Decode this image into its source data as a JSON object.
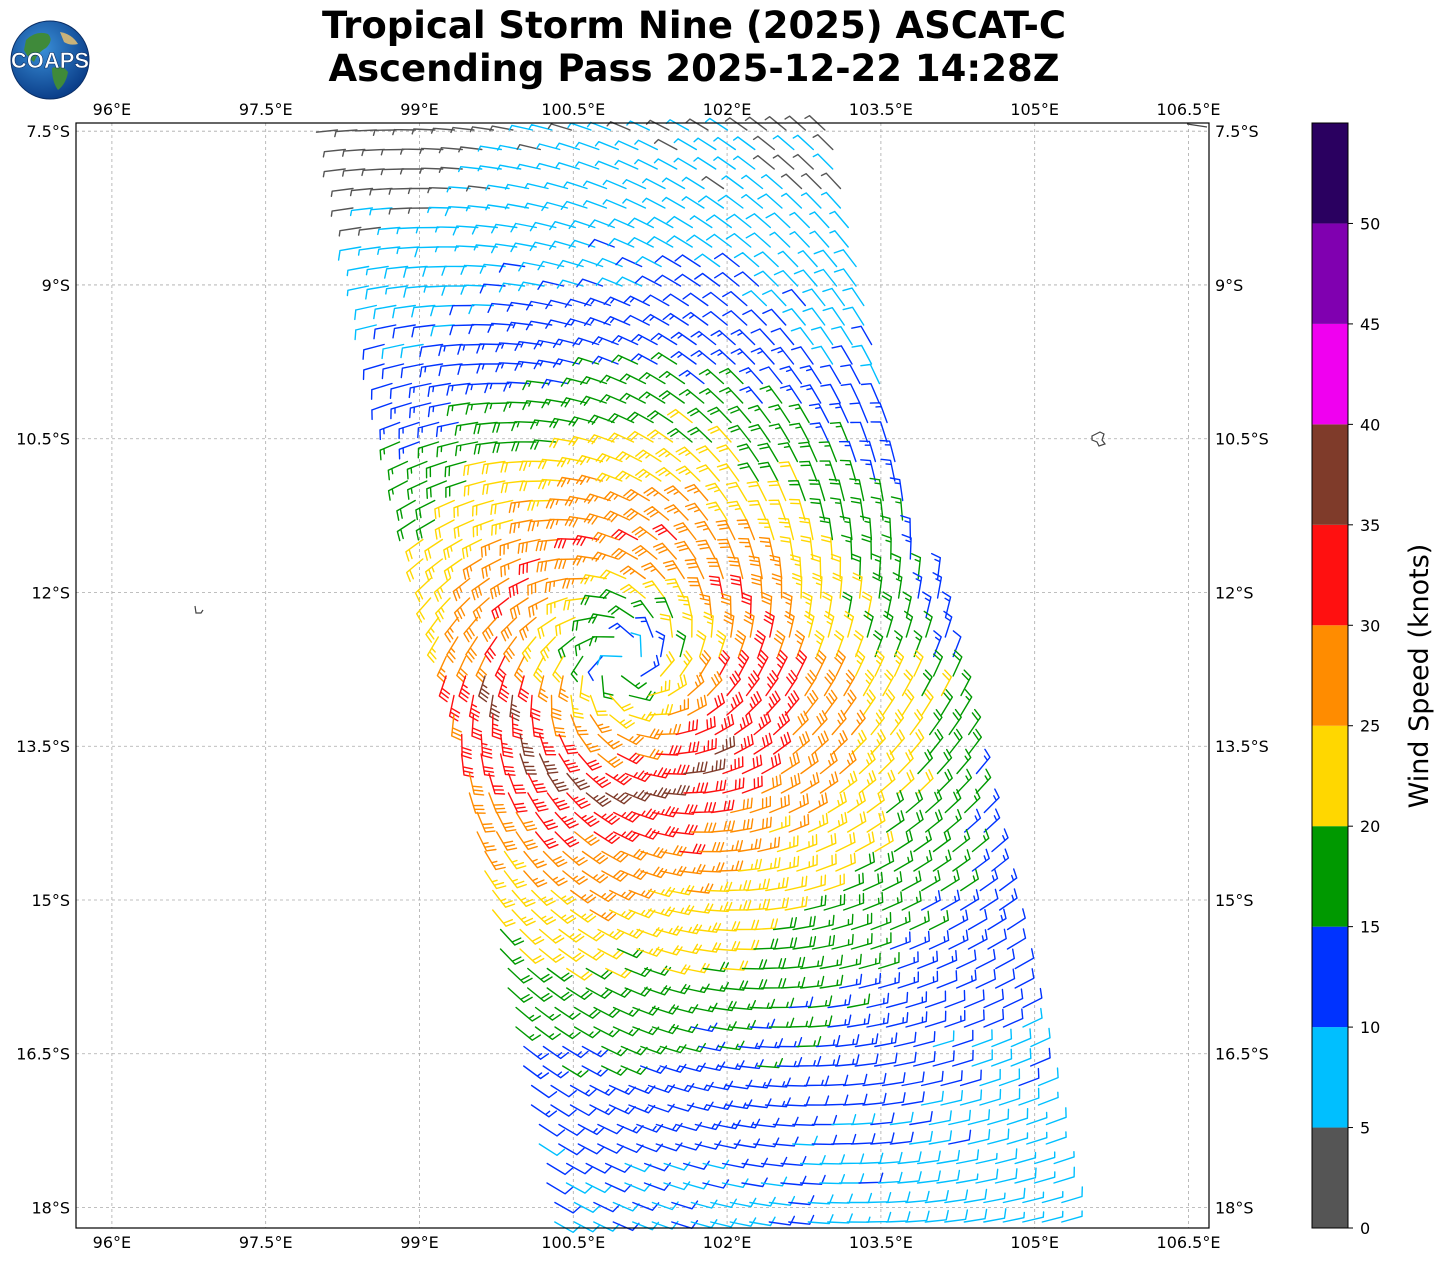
{
  "title": {
    "line1": "Tropical Storm Nine (2025) ASCAT-C",
    "line2": "Ascending Pass 2025-12-22 14:28Z"
  },
  "logo": {
    "text": "COAPS"
  },
  "map": {
    "lon_range": [
      95.65,
      106.7
    ],
    "lat_range": [
      -18.2,
      -7.42
    ],
    "lon_ticks": [
      {
        "value": 96,
        "label": "96°E"
      },
      {
        "value": 97.5,
        "label": "97.5°E"
      },
      {
        "value": 99,
        "label": "99°E"
      },
      {
        "value": 100.5,
        "label": "100.5°E"
      },
      {
        "value": 102,
        "label": "102°E"
      },
      {
        "value": 103.5,
        "label": "103.5°E"
      },
      {
        "value": 105,
        "label": "105°E"
      },
      {
        "value": 106.5,
        "label": "106.5°E"
      }
    ],
    "lat_ticks": [
      {
        "value": -7.5,
        "label": "7.5°S"
      },
      {
        "value": -9,
        "label": "9°S"
      },
      {
        "value": -10.5,
        "label": "10.5°S"
      },
      {
        "value": -12,
        "label": "12°S"
      },
      {
        "value": -13.5,
        "label": "13.5°S"
      },
      {
        "value": -15,
        "label": "15°S"
      },
      {
        "value": -16.5,
        "label": "16.5°S"
      },
      {
        "value": -18,
        "label": "18°S"
      }
    ],
    "storm_center": {
      "lon": 101.0,
      "lat": -12.7
    }
  },
  "colorbar": {
    "label": "Wind Speed (knots)",
    "levels": [
      {
        "from": 0,
        "to": 5,
        "color": "#555555"
      },
      {
        "from": 5,
        "to": 10,
        "color": "#00bfff"
      },
      {
        "from": 10,
        "to": 15,
        "color": "#0033ff"
      },
      {
        "from": 15,
        "to": 20,
        "color": "#009900"
      },
      {
        "from": 20,
        "to": 25,
        "color": "#ffd700"
      },
      {
        "from": 25,
        "to": 30,
        "color": "#ff8c00"
      },
      {
        "from": 30,
        "to": 35,
        "color": "#ff1010"
      },
      {
        "from": 35,
        "to": 40,
        "color": "#7f3b2a"
      },
      {
        "from": 40,
        "to": 45,
        "color": "#f000f0"
      },
      {
        "from": 45,
        "to": 50,
        "color": "#8000b0"
      },
      {
        "from": 50,
        "to": 55,
        "color": "#2a0060"
      }
    ],
    "tick_values": [
      "0",
      "5",
      "10",
      "15",
      "20",
      "25",
      "30",
      "35",
      "40",
      "45",
      "50"
    ]
  }
}
